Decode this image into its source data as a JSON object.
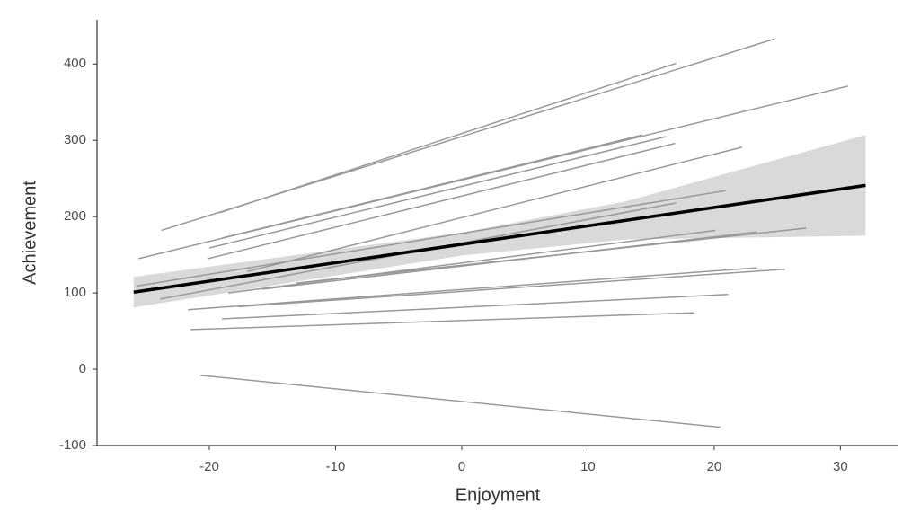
{
  "chart_data": {
    "type": "line",
    "x_label": "Enjoyment",
    "y_label": "Achievement",
    "xlim": [
      -28.9,
      34.6
    ],
    "ylim": [
      -100,
      458
    ],
    "xticks": [
      -20,
      -10,
      0,
      10,
      20,
      30
    ],
    "yticks": [
      -100,
      0,
      100,
      200,
      300,
      400
    ],
    "grid": false,
    "band": {
      "color": "#d9d9d9",
      "x": [
        -26,
        -13,
        0,
        13,
        32
      ],
      "lower": [
        81,
        115,
        149,
        170,
        175
      ],
      "upper": [
        121,
        150,
        179,
        220,
        307
      ]
    },
    "fit": {
      "color": "#000000",
      "x": [
        -26,
        32
      ],
      "values": [
        101,
        241
      ]
    },
    "series": [
      {
        "color": "#999999",
        "x": [
          -23.8,
          24.8
        ],
        "values": [
          182,
          433
        ]
      },
      {
        "color": "#999999",
        "x": [
          -19.2,
          17.0
        ],
        "values": [
          205,
          401
        ]
      },
      {
        "color": "#999999",
        "x": [
          -25.6,
          30.6
        ],
        "values": [
          145,
          371
        ]
      },
      {
        "color": "#999999",
        "x": [
          -19.0,
          14.3
        ],
        "values": [
          172,
          307
        ]
      },
      {
        "color": "#999999",
        "x": [
          -20.0,
          16.2
        ],
        "values": [
          159,
          305
        ]
      },
      {
        "color": "#999999",
        "x": [
          -20.1,
          16.9
        ],
        "values": [
          145,
          296
        ]
      },
      {
        "color": "#999999",
        "x": [
          -17.0,
          22.2
        ],
        "values": [
          128,
          291
        ]
      },
      {
        "color": "#999999",
        "x": [
          -25.8,
          20.9
        ],
        "values": [
          109,
          234
        ]
      },
      {
        "color": "#999999",
        "x": [
          -23.9,
          17.0
        ],
        "values": [
          92,
          218
        ]
      },
      {
        "color": "#999999",
        "x": [
          -18.5,
          20.1
        ],
        "values": [
          100,
          182
        ]
      },
      {
        "color": "#999999",
        "x": [
          -15.8,
          23.4
        ],
        "values": [
          105,
          180
        ]
      },
      {
        "color": "#999999",
        "x": [
          -13.1,
          27.3
        ],
        "values": [
          113,
          185
        ]
      },
      {
        "color": "#999999",
        "x": [
          -21.7,
          23.4
        ],
        "values": [
          78,
          133
        ]
      },
      {
        "color": "#999999",
        "x": [
          -17.7,
          25.6
        ],
        "values": [
          82,
          131
        ]
      },
      {
        "color": "#999999",
        "x": [
          -19.0,
          21.1
        ],
        "values": [
          66,
          98
        ]
      },
      {
        "color": "#999999",
        "x": [
          -21.5,
          18.4
        ],
        "values": [
          52,
          74
        ]
      },
      {
        "color": "#999999",
        "x": [
          -20.7,
          20.5
        ],
        "values": [
          -8,
          -76
        ]
      }
    ]
  }
}
